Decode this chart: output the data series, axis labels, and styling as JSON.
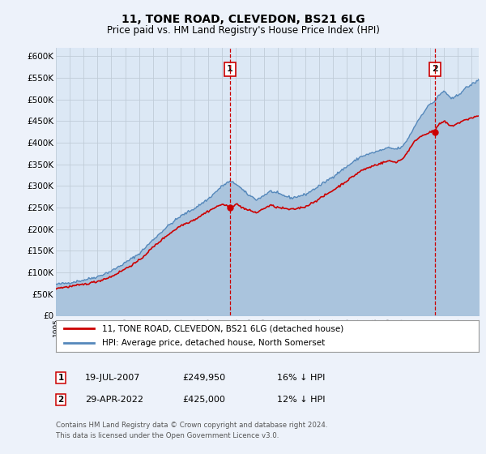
{
  "title": "11, TONE ROAD, CLEVEDON, BS21 6LG",
  "subtitle": "Price paid vs. HM Land Registry's House Price Index (HPI)",
  "background_color": "#edf2fa",
  "plot_bg_color": "#dce8f5",
  "grid_color": "#c8d8e8",
  "ylim": [
    0,
    620000
  ],
  "yticks": [
    0,
    50000,
    100000,
    150000,
    200000,
    250000,
    300000,
    350000,
    400000,
    450000,
    500000,
    550000,
    600000
  ],
  "sale1_date": 2007.54,
  "sale1_price": 249950,
  "sale1_label": "1",
  "sale2_date": 2022.33,
  "sale2_price": 425000,
  "sale2_label": "2",
  "legend_line1": "11, TONE ROAD, CLEVEDON, BS21 6LG (detached house)",
  "legend_line2": "HPI: Average price, detached house, North Somerset",
  "ann1_date": "19-JUL-2007",
  "ann1_price": "£249,950",
  "ann1_hpi": "16% ↓ HPI",
  "ann2_date": "29-APR-2022",
  "ann2_price": "£425,000",
  "ann2_hpi": "12% ↓ HPI",
  "footer": "Contains HM Land Registry data © Crown copyright and database right 2024.\nThis data is licensed under the Open Government Licence v3.0.",
  "hpi_color": "#5588bb",
  "hpi_fill_color": "#aac4dd",
  "price_color": "#cc0000",
  "sale_dot_color": "#cc0000",
  "dashed_color": "#cc0000"
}
